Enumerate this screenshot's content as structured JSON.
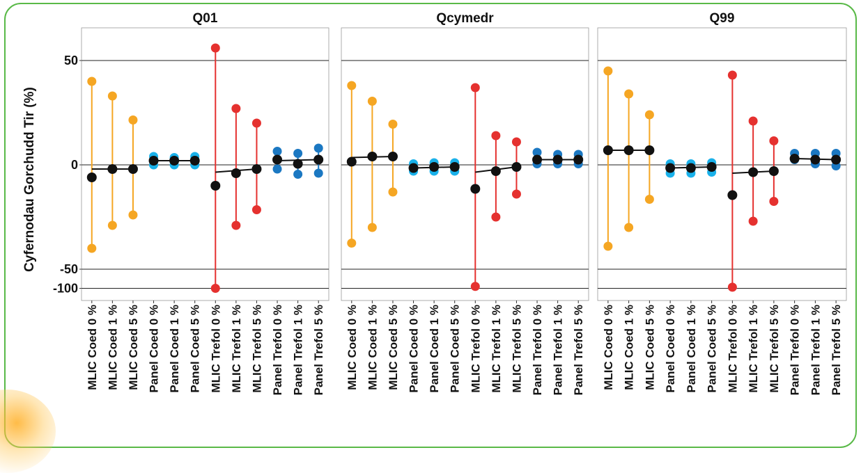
{
  "chart_data": {
    "type": "scatter",
    "ylabel": "Cyfernodau Gorchudd Tir (%)",
    "yticks": [
      "50",
      "0",
      "-50",
      "-100"
    ],
    "categories": [
      "MLIC Coed 0 %",
      "MLIC Coed 1 %",
      "MLIC Coed 5 %",
      "Panel Coed 0 %",
      "Panel Coed 1 %",
      "Panel Coed 5 %",
      "MLIC Trefol 0 %",
      "MLIC Trefol 1 %",
      "MLIC Trefol 5 %",
      "Panel Trefol 0 %",
      "Panel Trefol 1 %",
      "Panel Trefol 5 %"
    ],
    "colors": {
      "mlic_coed": "#f5a623",
      "panel_coed": "#1ab1ea",
      "mlic_trefol": "#e5312f",
      "panel_trefol": "#1b78c2",
      "median": "#111111"
    },
    "group_colors": [
      "mlic_coed",
      "mlic_coed",
      "mlic_coed",
      "panel_coed",
      "panel_coed",
      "panel_coed",
      "mlic_trefol",
      "mlic_trefol",
      "mlic_trefol",
      "panel_trefol",
      "panel_trefol",
      "panel_trefol"
    ],
    "panels": [
      {
        "title": "Q01",
        "upper": [
          40,
          33,
          21.5,
          4,
          3.5,
          4,
          56,
          27,
          20,
          6.5,
          5.5,
          8
        ],
        "median": [
          -6,
          -2,
          -2,
          2,
          2,
          2,
          -10,
          -4,
          -2,
          2.5,
          0.5,
          2.5
        ],
        "lower": [
          -40,
          -29,
          -24,
          0,
          0,
          0,
          -100,
          -29,
          -21.5,
          -2,
          -4.5,
          -4
        ],
        "median_line": [
          [
            0,
            -2
          ],
          [
            2,
            -2
          ],
          [
            3,
            2
          ],
          [
            5,
            2
          ],
          [
            6,
            -3.5
          ],
          [
            8,
            -2
          ],
          [
            9,
            2
          ],
          [
            11,
            2.5
          ]
        ]
      },
      {
        "title": "Qcymedr",
        "upper": [
          38,
          30.5,
          19.5,
          0.5,
          1,
          1,
          37,
          14,
          11,
          6,
          5,
          5
        ],
        "median": [
          1.5,
          4,
          4,
          -1.5,
          -1,
          -1,
          -11.5,
          -3,
          -1,
          2.5,
          2.5,
          2.5
        ],
        "lower": [
          -37.5,
          -30,
          -13,
          -3,
          -3,
          -3,
          -95,
          -25,
          -14,
          0.5,
          0.5,
          0.5
        ],
        "median_line": [
          [
            0,
            3.5
          ],
          [
            2,
            4
          ],
          [
            3,
            -1.5
          ],
          [
            5,
            -1
          ],
          [
            6,
            -3.5
          ],
          [
            8,
            -1
          ],
          [
            9,
            2.5
          ],
          [
            11,
            2.5
          ]
        ]
      },
      {
        "title": "Q99",
        "upper": [
          45,
          34,
          24,
          0.5,
          0.5,
          1,
          43,
          21,
          11.5,
          5.5,
          5.5,
          5.5
        ],
        "median": [
          7,
          7,
          7,
          -1.5,
          -1.5,
          -1,
          -14.5,
          -3.5,
          -3,
          3,
          2.5,
          2.5
        ],
        "lower": [
          -39,
          -30,
          -16.5,
          -4,
          -4,
          -3.5,
          -97,
          -27,
          -17.5,
          2.5,
          0.5,
          -0.5
        ],
        "median_line": [
          [
            0,
            7
          ],
          [
            2,
            7
          ],
          [
            3,
            -1.5
          ],
          [
            5,
            -1
          ],
          [
            6,
            -4
          ],
          [
            8,
            -3
          ],
          [
            9,
            3
          ],
          [
            11,
            2.5
          ]
        ]
      }
    ]
  }
}
